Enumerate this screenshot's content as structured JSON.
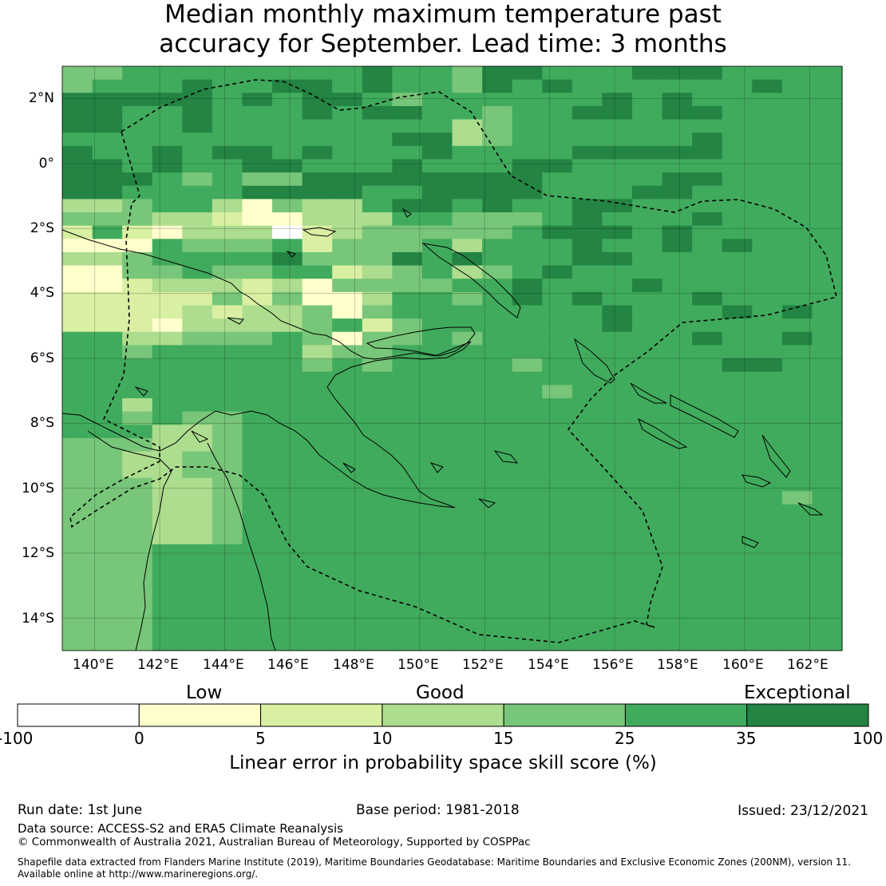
{
  "title_line1": "Median monthly maximum temperature past",
  "title_line2": "accuracy for September. Lead time: 3 months",
  "lat_labels": [
    "2°N",
    "0°",
    "2°S",
    "4°S",
    "6°S",
    "8°S",
    "10°S",
    "12°S",
    "14°S"
  ],
  "lon_labels": [
    "140°E",
    "142°E",
    "144°E",
    "146°E",
    "148°E",
    "150°E",
    "152°E",
    "154°E",
    "156°E",
    "158°E",
    "160°E",
    "162°E"
  ],
  "categories": {
    "low": "Low",
    "good": "Good",
    "exceptional": "Exceptional"
  },
  "colorbar": {
    "title": "Linear error in probability space skill score (%)",
    "bounds": [
      "-100",
      "0",
      "5",
      "10",
      "15",
      "25",
      "35",
      "100"
    ],
    "colors": [
      "#ffffff",
      "#ffffcc",
      "#d9f0a3",
      "#addd8e",
      "#78c679",
      "#41ab5d",
      "#238443"
    ]
  },
  "footer": {
    "run_date": "Run date: 1st June",
    "base_period": "Base period: 1981-2018",
    "issued": "Issued: 23/12/2021",
    "data_source": "Data source: ACCESS-S2 and ERA5 Climate Reanalysis",
    "copyright": "© Commonwealth of Australia 2021, Australian Bureau of Meteorology, Supported by COSPPac",
    "shapefile_line1": "Shapefile data extracted from Flanders Marine Institute (2019), Maritime Boundaries Geodatabase: Maritime Boundaries and Exclusive Economic Zones (200NM), version 11.",
    "shapefile_line2": "Available online at http://www.marineregions.org/."
  },
  "map_data": {
    "lon_range": [
      139,
      163
    ],
    "lat_range": [
      -15,
      3
    ],
    "cell_degrees": 0.833,
    "grid_rows": [
      "44555555556554665556665555",
      "45556556656554656555555655",
      "66666565665455555565655555",
      "66556555656655455665665555",
      "66556555555553455555555555",
      "55555555555663455555565555",
      "65565665655565555666665555",
      "66565566555655566555555555",
      "66654544666666665555665555",
      "66555566665566665556655555",
      "33455314335665655665555555",
      "44433211333554445655565555",
      "25213330234444456665655555",
      "11154445244453555655656555",
      "33455556444656555665555555",
      "11445445523453456555555555",
      "11233323144445565556555555",
      "22222424113554565655565555",
      "22223233414555555565556565",
      "22213333452455555565555555",
      "55334445414454555555565565",
      "55455555344555555555555555",
      "55555555454555545555556655",
      "55555555555555555555555555",
      "55555555555555554555555555",
      "55355555555555555555555555",
      "55454455555555555555555555",
      "55533455555555555555555555",
      "44433455555555555555555555",
      "44334455555555555555555555",
      "44334455555555555555555555",
      "44433455555555555555555555",
      "44433455555555555555555545",
      "44433455555555555555555555",
      "44433455555555555555555555",
      "44433455555555555555555555",
      "44455555555555555555555555",
      "44455555555555555555555555",
      "44455555555555555555555555",
      "44455555555555555555555555",
      "44455555555555555555555555",
      "44455555555555555555555555",
      "44455555555555555555555555",
      "44455555555555555555555555"
    ]
  }
}
